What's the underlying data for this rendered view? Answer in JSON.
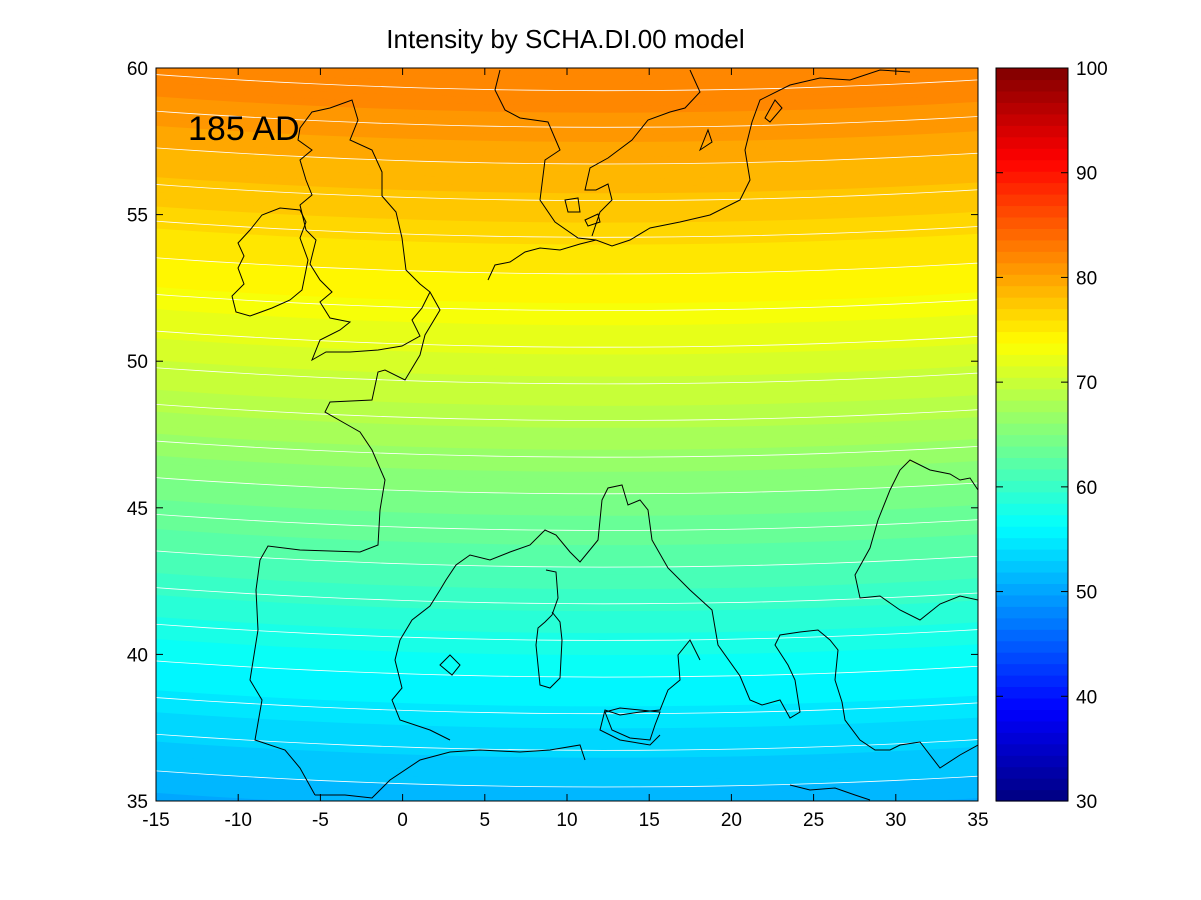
{
  "title": "Intensity by SCHA.DI.00 model",
  "epoch_label": "185 AD",
  "map": {
    "lon_range": [
      -15,
      35
    ],
    "lat_range": [
      35,
      60
    ],
    "x_ticks": [
      -15,
      -10,
      -5,
      0,
      5,
      10,
      15,
      20,
      25,
      30,
      35
    ],
    "y_ticks": [
      35,
      40,
      45,
      50,
      55,
      60
    ],
    "contour_line_color": "#ffffff",
    "coastline_color": "#000000",
    "field": {
      "quantity": "Intensity",
      "value_at_lat": [
        {
          "lat": 35,
          "value": 50
        },
        {
          "lat": 40,
          "value": 56
        },
        {
          "lat": 45,
          "value": 63
        },
        {
          "lat": 50,
          "value": 70
        },
        {
          "lat": 55,
          "value": 76
        },
        {
          "lat": 60,
          "value": 82
        }
      ]
    }
  },
  "colorbar": {
    "range": [
      30,
      100
    ],
    "ticks": [
      30,
      40,
      50,
      60,
      70,
      80,
      90,
      100
    ],
    "colormap": "jet"
  }
}
